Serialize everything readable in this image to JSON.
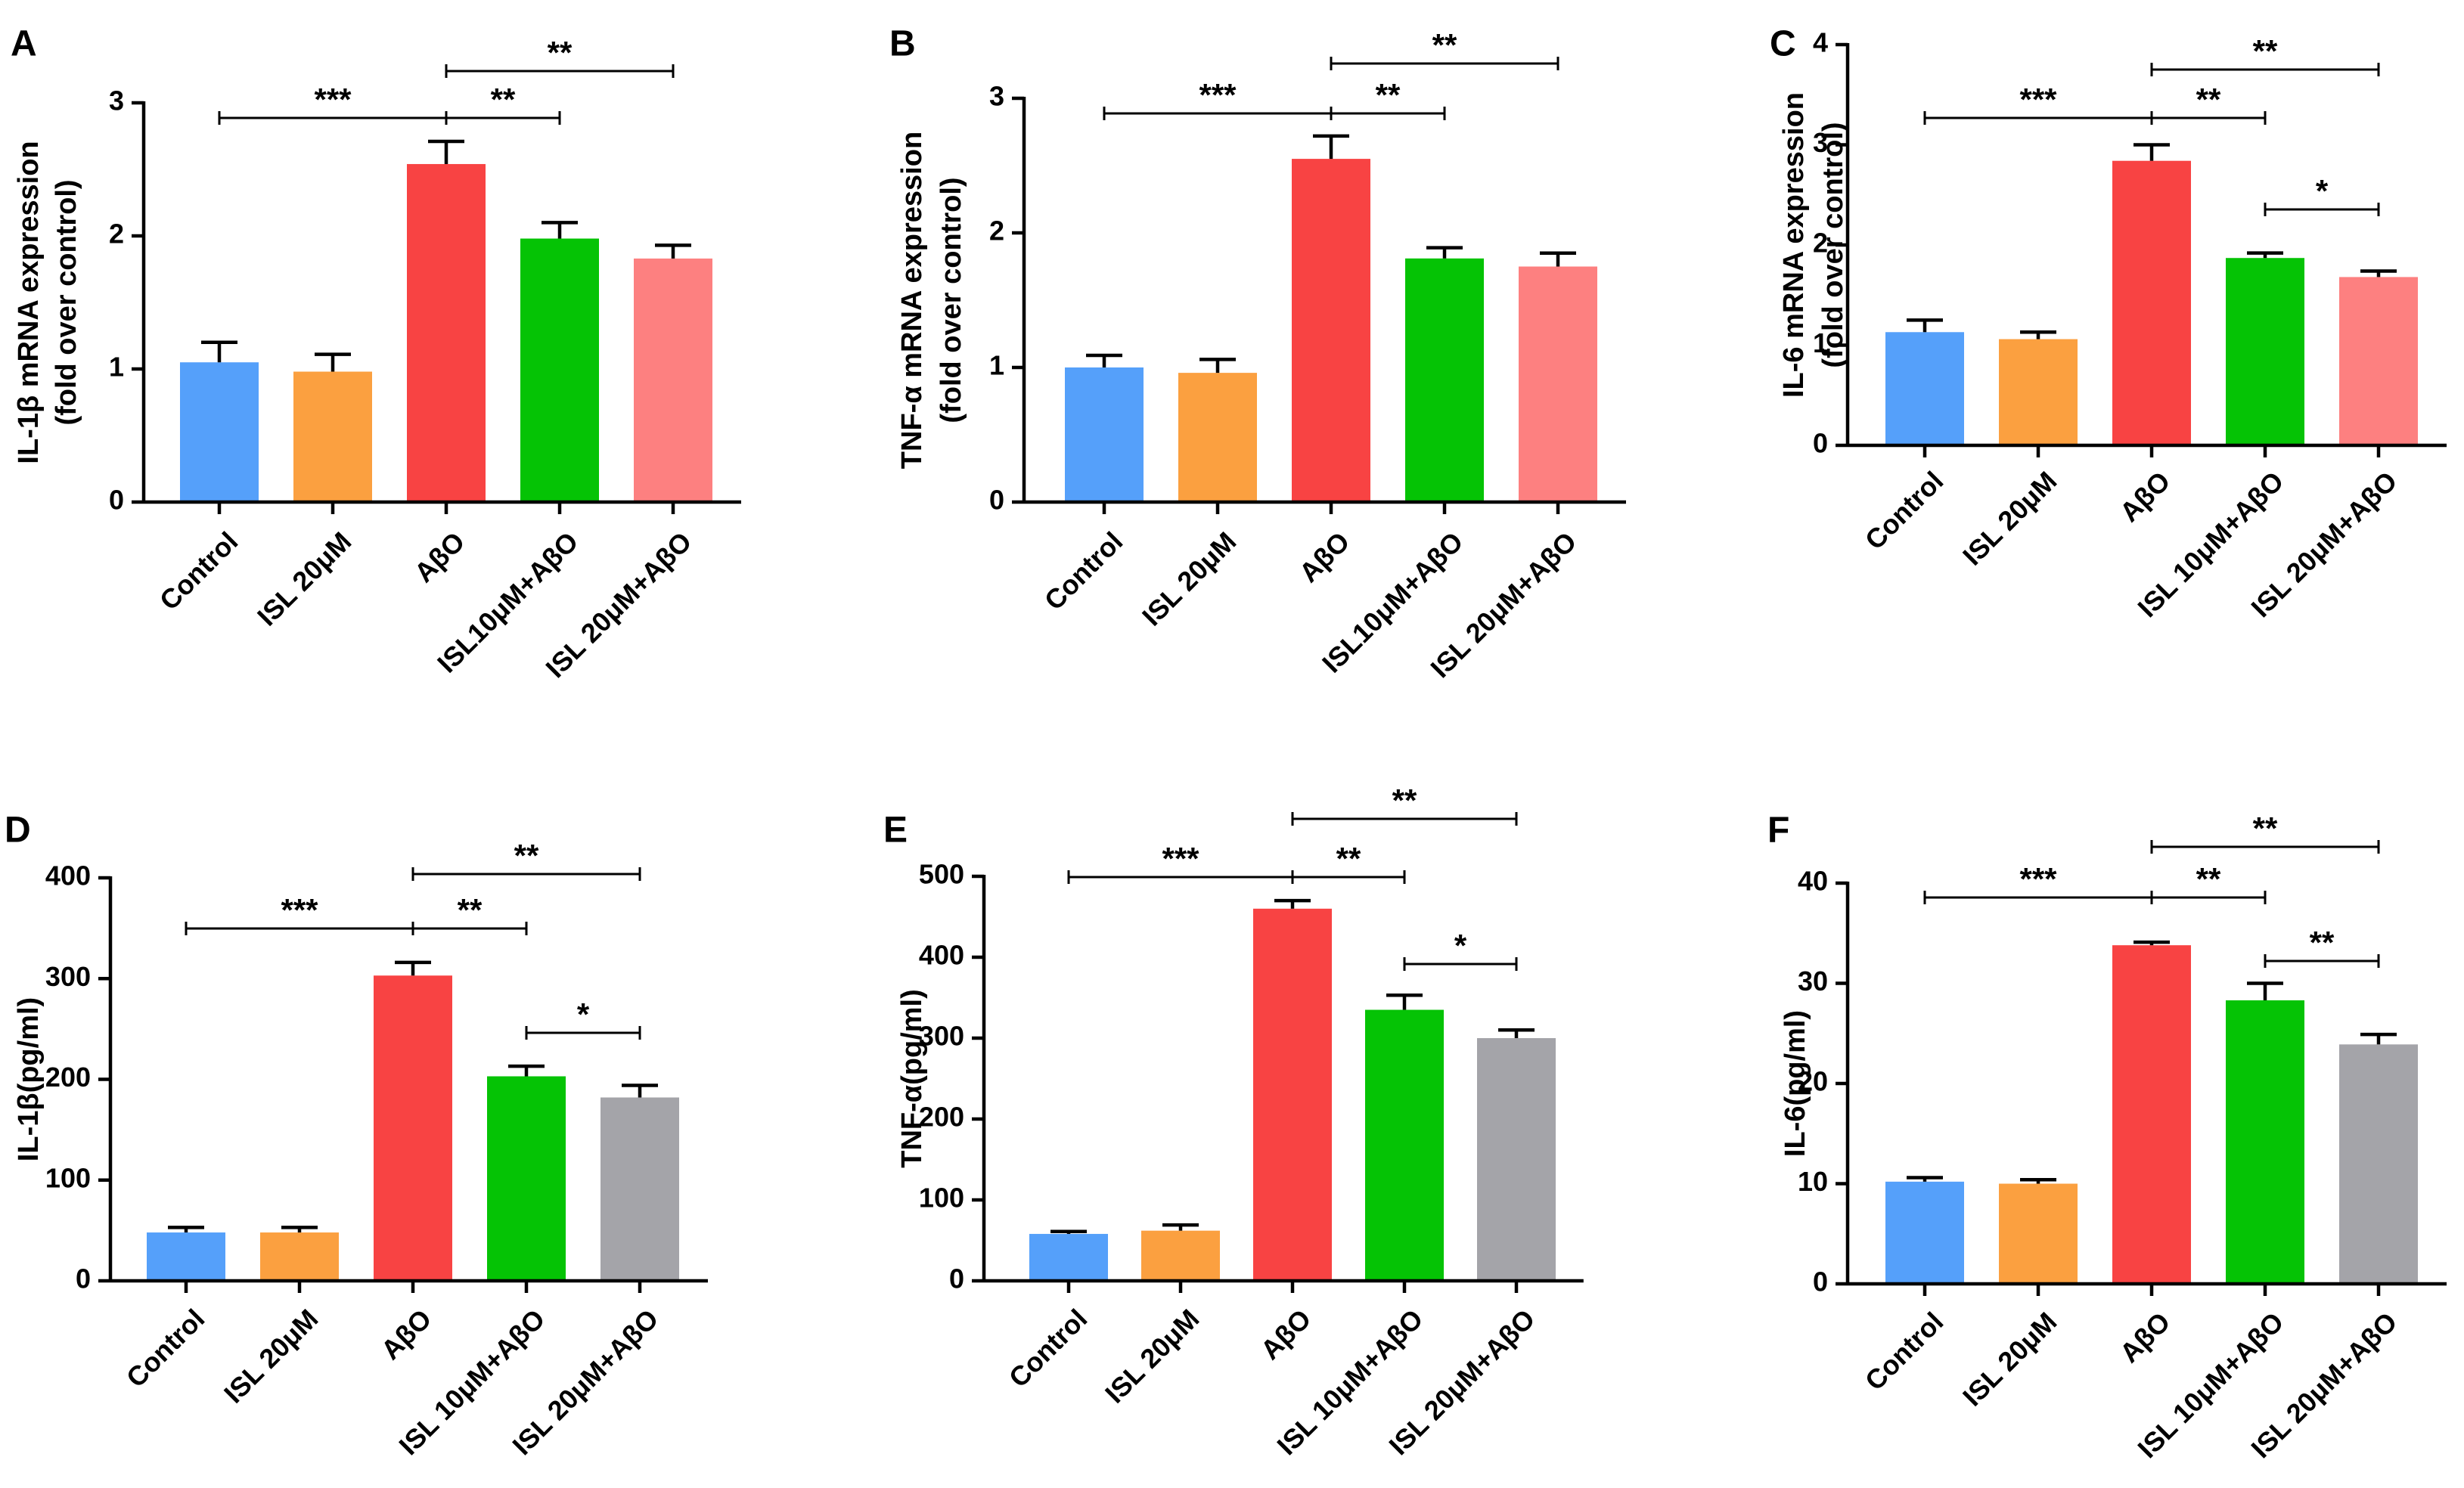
{
  "colors": {
    "blue": "#55a0fa",
    "orange": "#fba040",
    "red": "#f84343",
    "green": "#05c305",
    "pink": "#fd8080",
    "gray": "#a4a4a9"
  },
  "chart_data": [
    {
      "panel": "A",
      "type": "bar",
      "ylabel_lines": [
        "IL-1β mRNA expression",
        "(fold over control)"
      ],
      "categories": [
        "Control",
        "ISL 20μM",
        "AβO",
        "ISL10μM+AβO",
        "ISL 20μM+AβO"
      ],
      "values": [
        1.05,
        0.98,
        2.54,
        1.98,
        1.83
      ],
      "errors": [
        0.15,
        0.13,
        0.17,
        0.12,
        0.1
      ],
      "bar_colors": [
        "#55a0fa",
        "#fba040",
        "#f84343",
        "#05c305",
        "#fd8080"
      ],
      "ylim": [
        0,
        3
      ],
      "yticks": [
        0,
        1,
        2,
        3
      ],
      "significance": [
        {
          "from": 0,
          "to": 2,
          "label": "***"
        },
        {
          "from": 2,
          "to": 3,
          "label": "**"
        },
        {
          "from": 2,
          "to": 4,
          "label": "**"
        }
      ]
    },
    {
      "panel": "B",
      "type": "bar",
      "ylabel_lines": [
        "TNF-α mRNA expression",
        "(fold over control)"
      ],
      "categories": [
        "Control",
        "ISL 20μM",
        "AβO",
        "ISL10μM+AβO",
        "ISL 20μM+AβO"
      ],
      "values": [
        1.0,
        0.96,
        2.55,
        1.81,
        1.75
      ],
      "errors": [
        0.09,
        0.1,
        0.17,
        0.08,
        0.1
      ],
      "bar_colors": [
        "#55a0fa",
        "#fba040",
        "#f84343",
        "#05c305",
        "#fd8080"
      ],
      "ylim": [
        0,
        3
      ],
      "yticks": [
        0,
        1,
        2,
        3
      ],
      "significance": [
        {
          "from": 0,
          "to": 2,
          "label": "***"
        },
        {
          "from": 2,
          "to": 3,
          "label": "**"
        },
        {
          "from": 2,
          "to": 4,
          "label": "**"
        }
      ]
    },
    {
      "panel": "C",
      "type": "bar",
      "ylabel_lines": [
        "IL-6 mRNA expression",
        "(fold over control)"
      ],
      "categories": [
        "Control",
        "ISL 20μM",
        "AβO",
        "ISL 10μM+AβO",
        "ISL 20μM+AβO"
      ],
      "values": [
        1.13,
        1.06,
        2.84,
        1.87,
        1.68
      ],
      "errors": [
        0.12,
        0.07,
        0.16,
        0.05,
        0.06
      ],
      "bar_colors": [
        "#55a0fa",
        "#fba040",
        "#f84343",
        "#05c305",
        "#fd8080"
      ],
      "ylim": [
        0,
        4
      ],
      "yticks": [
        0,
        1,
        2,
        3,
        4
      ],
      "significance": [
        {
          "from": 0,
          "to": 2,
          "label": "***"
        },
        {
          "from": 2,
          "to": 3,
          "label": "**"
        },
        {
          "from": 2,
          "to": 4,
          "label": "**"
        },
        {
          "from": 3,
          "to": 4,
          "label": "*"
        }
      ]
    },
    {
      "panel": "D",
      "type": "bar",
      "ylabel_lines": [
        "IL-1β(pg/ml)"
      ],
      "categories": [
        "Control",
        "ISL 20μM",
        "AβO",
        "ISL 10μM+AβO",
        "ISL 20μM+AβO"
      ],
      "values": [
        48,
        48,
        303,
        203,
        182
      ],
      "errors": [
        5,
        5,
        13,
        10,
        12
      ],
      "bar_colors": [
        "#55a0fa",
        "#fba040",
        "#f84343",
        "#05c305",
        "#a4a4a9"
      ],
      "ylim": [
        0,
        400
      ],
      "yticks": [
        0,
        100,
        200,
        300,
        400
      ],
      "significance": [
        {
          "from": 0,
          "to": 2,
          "label": "***"
        },
        {
          "from": 2,
          "to": 3,
          "label": "**"
        },
        {
          "from": 2,
          "to": 4,
          "label": "**"
        },
        {
          "from": 3,
          "to": 4,
          "label": "*"
        }
      ]
    },
    {
      "panel": "E",
      "type": "bar",
      "ylabel_lines": [
        "TNF-α(pg/ml)"
      ],
      "categories": [
        "Control",
        "ISL 20μM",
        "AβO",
        "ISL 10μM+AβO",
        "ISL 20μM+AβO"
      ],
      "values": [
        58,
        62,
        460,
        335,
        300
      ],
      "errors": [
        3,
        7,
        10,
        18,
        10
      ],
      "bar_colors": [
        "#55a0fa",
        "#fba040",
        "#f84343",
        "#05c305",
        "#a4a4a9"
      ],
      "ylim": [
        0,
        500
      ],
      "yticks": [
        0,
        100,
        200,
        300,
        400,
        500
      ],
      "significance": [
        {
          "from": 0,
          "to": 2,
          "label": "***"
        },
        {
          "from": 2,
          "to": 3,
          "label": "**"
        },
        {
          "from": 2,
          "to": 4,
          "label": "**"
        },
        {
          "from": 3,
          "to": 4,
          "label": "*"
        }
      ]
    },
    {
      "panel": "F",
      "type": "bar",
      "ylabel_lines": [
        "IL-6(pg/ml)"
      ],
      "categories": [
        "Control",
        "ISL 20μM",
        "AβO",
        "ISL 10μM+AβO",
        "ISL 20μM+AβO"
      ],
      "values": [
        10.2,
        10.0,
        33.8,
        28.3,
        23.9
      ],
      "errors": [
        0.4,
        0.4,
        0.3,
        1.7,
        1.0
      ],
      "bar_colors": [
        "#55a0fa",
        "#fba040",
        "#f84343",
        "#05c305",
        "#a4a4a9"
      ],
      "ylim": [
        0,
        40
      ],
      "yticks": [
        0,
        10,
        20,
        30,
        40
      ],
      "significance": [
        {
          "from": 0,
          "to": 2,
          "label": "***"
        },
        {
          "from": 2,
          "to": 3,
          "label": "**"
        },
        {
          "from": 2,
          "to": 4,
          "label": "**"
        },
        {
          "from": 3,
          "to": 4,
          "label": "**"
        }
      ]
    }
  ]
}
